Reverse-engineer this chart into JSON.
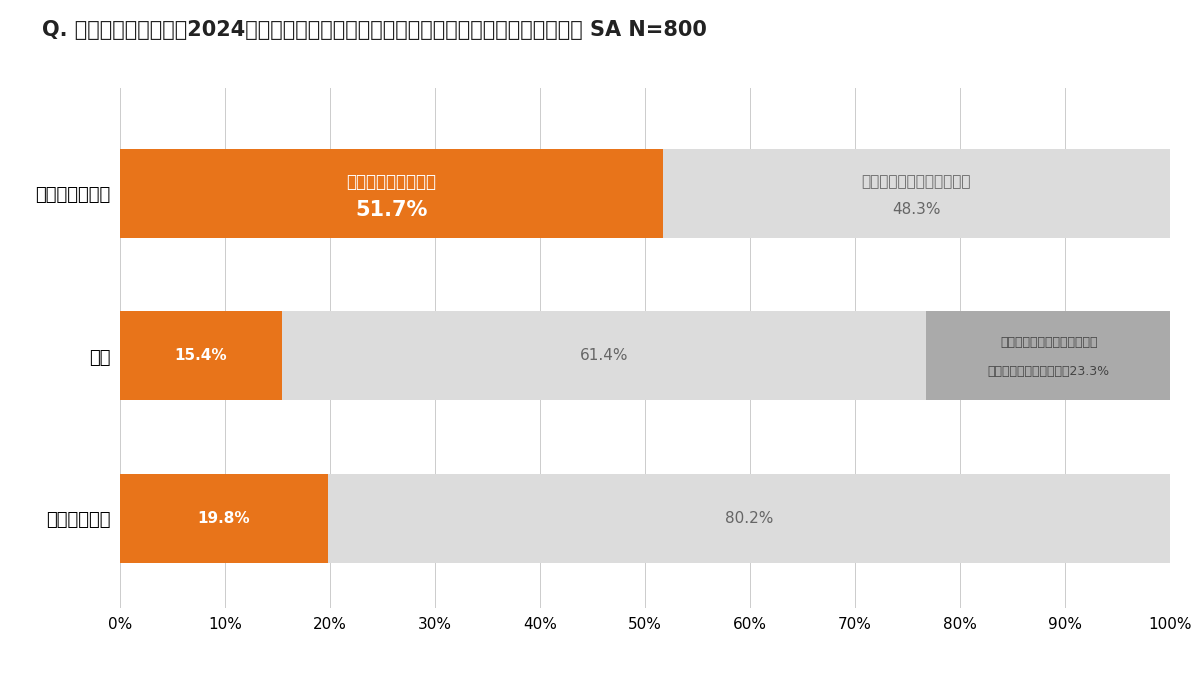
{
  "title": "Q. 防災意識が高まった2024年で「見直したい」と思ったことについて教えてください。 SA N=800",
  "categories": [
    "スマートフォン",
    "保険",
    "居住地や住居"
  ],
  "segments": [
    [
      {
        "value": 51.7,
        "color": "#E8741A",
        "label_line1": "見直したいと思った",
        "label_line2": "51.7%",
        "label_color": "white",
        "bold": true
      },
      {
        "value": 48.3,
        "color": "#DCDCDC",
        "label_line1": "見直したいと思わなかった",
        "label_line2": "48.3%",
        "label_color": "#666666",
        "bold": false
      }
    ],
    [
      {
        "value": 15.4,
        "color": "#E8741A",
        "label_line1": "15.4%",
        "label_line2": "",
        "label_color": "white",
        "bold": true
      },
      {
        "value": 61.4,
        "color": "#DCDCDC",
        "label_line1": "61.4%",
        "label_line2": "",
        "label_color": "#666666",
        "bold": false
      },
      {
        "value": 23.3,
        "color": "#AAAAAA",
        "label_line1": "すでに十分な保険に入ってい",
        "label_line2": "るの見直さなくてよい　23.3%",
        "label_color": "#444444",
        "bold": false
      }
    ],
    [
      {
        "value": 19.8,
        "color": "#E8741A",
        "label_line1": "19.8%",
        "label_line2": "",
        "label_color": "white",
        "bold": true
      },
      {
        "value": 80.2,
        "color": "#DCDCDC",
        "label_line1": "80.2%",
        "label_line2": "",
        "label_color": "#666666",
        "bold": false
      }
    ]
  ],
  "xlim": [
    0,
    100
  ],
  "xticks": [
    0,
    10,
    20,
    30,
    40,
    50,
    60,
    70,
    80,
    90,
    100
  ],
  "xtick_labels": [
    "0%",
    "10%",
    "20%",
    "30%",
    "40%",
    "50%",
    "60%",
    "70%",
    "80%",
    "90%",
    "100%"
  ],
  "background_color": "#ffffff",
  "bar_height": 0.55,
  "title_fontsize": 15,
  "tick_fontsize": 11,
  "category_fontsize": 13
}
